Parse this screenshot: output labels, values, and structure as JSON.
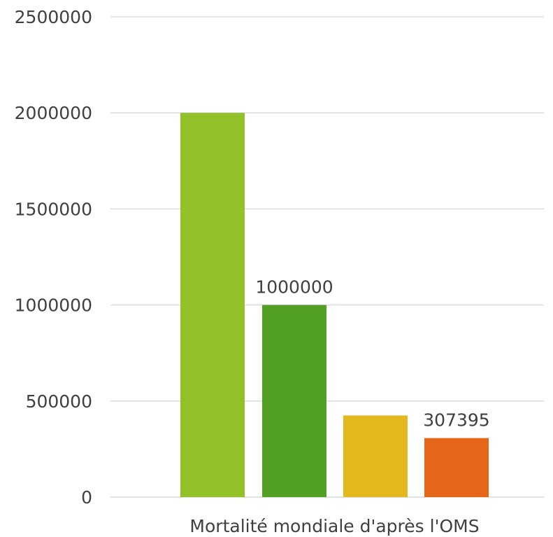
{
  "chart_data": {
    "type": "bar",
    "categories": [
      "Mortalité mondiale d'après l'OMS"
    ],
    "series": [
      {
        "values": [
          2000000
        ],
        "color": "#92c12a",
        "show_label": false
      },
      {
        "values": [
          1000000
        ],
        "color": "#52a024",
        "show_label": true
      },
      {
        "values": [
          425000
        ],
        "color": "#e4b920",
        "show_label": false
      },
      {
        "values": [
          307395
        ],
        "color": "#e66619",
        "show_label": true
      }
    ],
    "ylim": [
      0,
      2500000
    ],
    "yticks": [
      0,
      500000,
      1000000,
      1500000,
      2000000,
      2500000
    ],
    "grid": true,
    "legend": "none",
    "title": "",
    "xlabel": "",
    "ylabel": ""
  }
}
